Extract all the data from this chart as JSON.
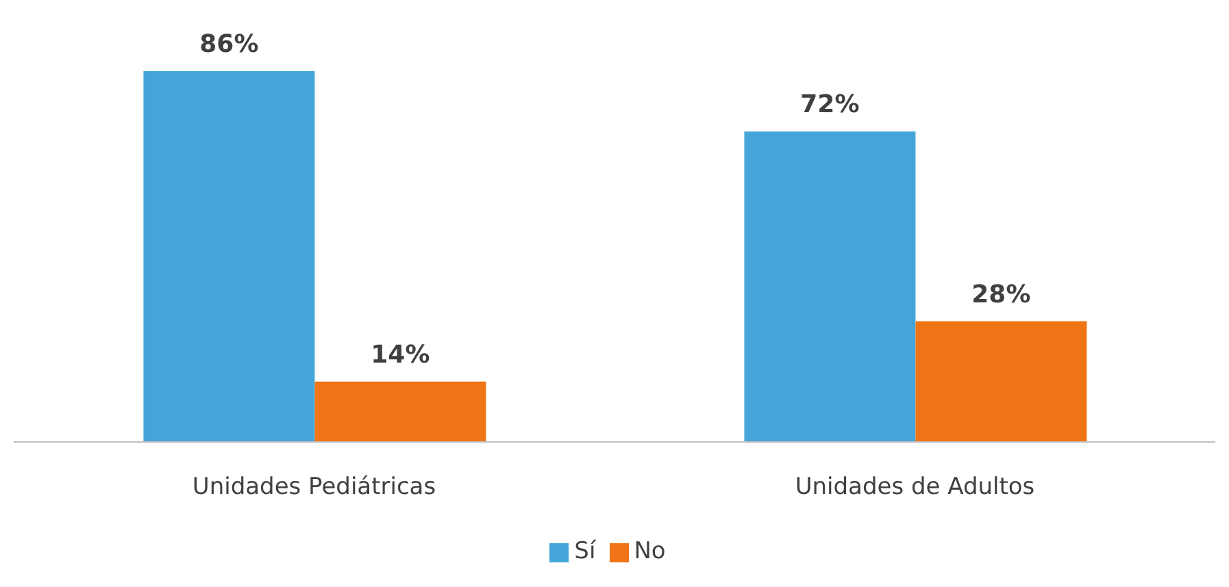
{
  "chart_data": {
    "type": "bar",
    "categories": [
      "Unidades Pediátricas",
      "Unidades de Adultos"
    ],
    "series": [
      {
        "name": "Sí",
        "color": "#45a5d9",
        "values": [
          86,
          72
        ],
        "value_labels": [
          "86%",
          "72%"
        ]
      },
      {
        "name": "No",
        "color": "#f07415",
        "values": [
          14,
          28
        ],
        "value_labels": [
          "14%",
          "28%"
        ]
      }
    ],
    "legend": "bottom",
    "grid": false
  }
}
